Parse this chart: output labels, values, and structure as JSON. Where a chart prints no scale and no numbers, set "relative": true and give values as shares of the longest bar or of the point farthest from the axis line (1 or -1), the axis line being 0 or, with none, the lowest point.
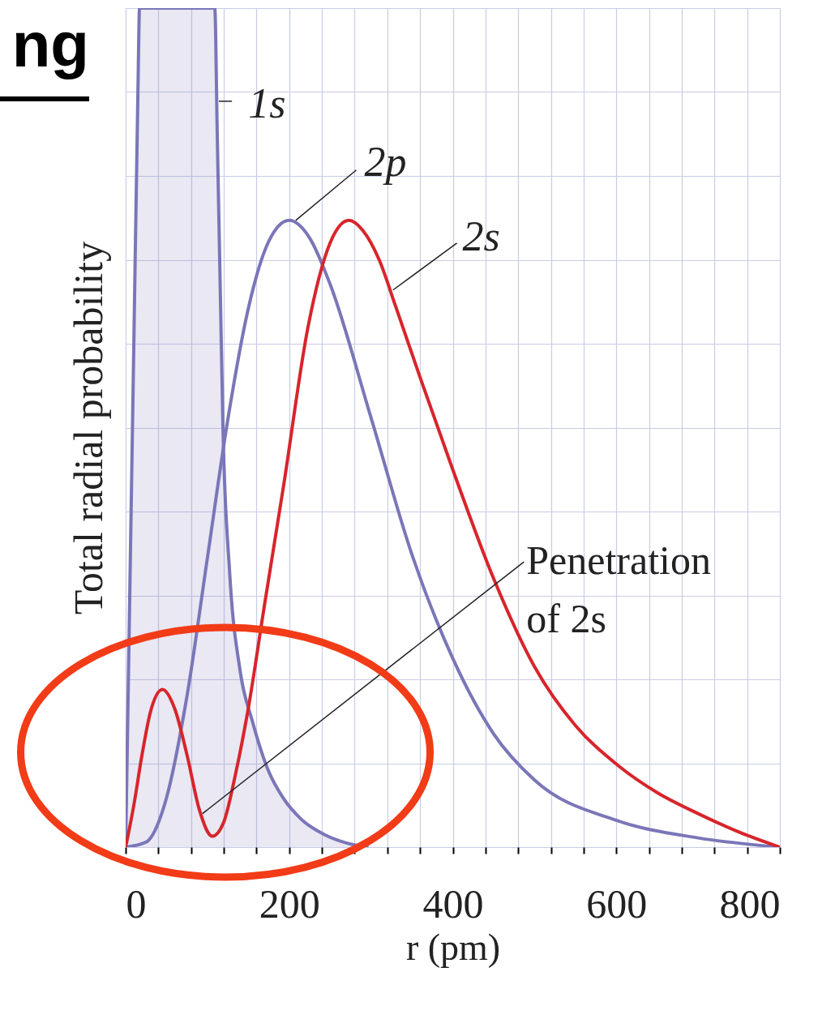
{
  "chart_data": {
    "type": "line",
    "relative": true,
    "xlabel": "r (pm)",
    "ylabel": "Total radial probability",
    "xlim": [
      0,
      800
    ],
    "xticks": [
      0,
      {
        "value": 40,
        "label": null
      },
      {
        "value": 80,
        "label": null
      },
      {
        "value": 120,
        "label": null
      },
      {
        "value": 160,
        "label": null
      },
      200,
      {
        "value": 240,
        "label": null
      },
      {
        "value": 280,
        "label": null
      },
      {
        "value": 320,
        "label": null
      },
      {
        "value": 360,
        "label": null
      },
      400,
      {
        "value": 440,
        "label": null
      },
      {
        "value": 480,
        "label": null
      },
      {
        "value": 520,
        "label": null
      },
      {
        "value": 560,
        "label": null
      },
      600,
      {
        "value": 640,
        "label": null
      },
      {
        "value": 680,
        "label": null
      },
      {
        "value": 720,
        "label": null
      },
      {
        "value": 760,
        "label": null
      },
      800
    ],
    "grid": true,
    "legend": false,
    "series": [
      {
        "name": "1s",
        "type": "area",
        "color": "#7a76b8",
        "x": [
          0,
          5,
          10,
          15,
          17,
          109,
          112,
          116,
          119,
          127,
          140,
          155,
          175,
          193,
          215,
          243,
          270,
          297
        ],
        "values": [
          0,
          0.3,
          0.6,
          0.9,
          1.0,
          1.0,
          0.85,
          0.65,
          0.5,
          0.33,
          0.21,
          0.15,
          0.09,
          0.058,
          0.033,
          0.015,
          0.005,
          0
        ]
      },
      {
        "name": "2p",
        "color": "#7a76b8",
        "x": [
          0,
          25,
          50,
          75,
          100,
          125,
          150,
          175,
          200,
          225,
          250,
          300,
          350,
          400,
          450,
          500,
          600,
          700,
          800
        ],
        "values": [
          0,
          0.006,
          0.059,
          0.18,
          0.345,
          0.51,
          0.642,
          0.722,
          0.747,
          0.726,
          0.671,
          0.512,
          0.349,
          0.225,
          0.135,
          0.08,
          0.032,
          0.011,
          0
        ]
      },
      {
        "name": "2s",
        "color": "#d7252b",
        "x": [
          0,
          10,
          20,
          30,
          45,
          60,
          75,
          90,
          106,
          120,
          135,
          149,
          170,
          193,
          223,
          250,
          273,
          290,
          310,
          330,
          360,
          400,
          450,
          500,
          550,
          600,
          650,
          700,
          750,
          800
        ],
        "values": [
          0,
          0.05,
          0.11,
          0.16,
          0.188,
          0.165,
          0.11,
          0.045,
          0.013,
          0.03,
          0.09,
          0.16,
          0.29,
          0.43,
          0.62,
          0.72,
          0.747,
          0.735,
          0.7,
          0.645,
          0.56,
          0.45,
          0.32,
          0.215,
          0.145,
          0.099,
          0.065,
          0.04,
          0.018,
          0
        ]
      }
    ],
    "annotations": [
      "ng",
      {
        "text": "Penetration of 2s",
        "x": 94,
        "y": 0.04
      }
    ]
  }
}
